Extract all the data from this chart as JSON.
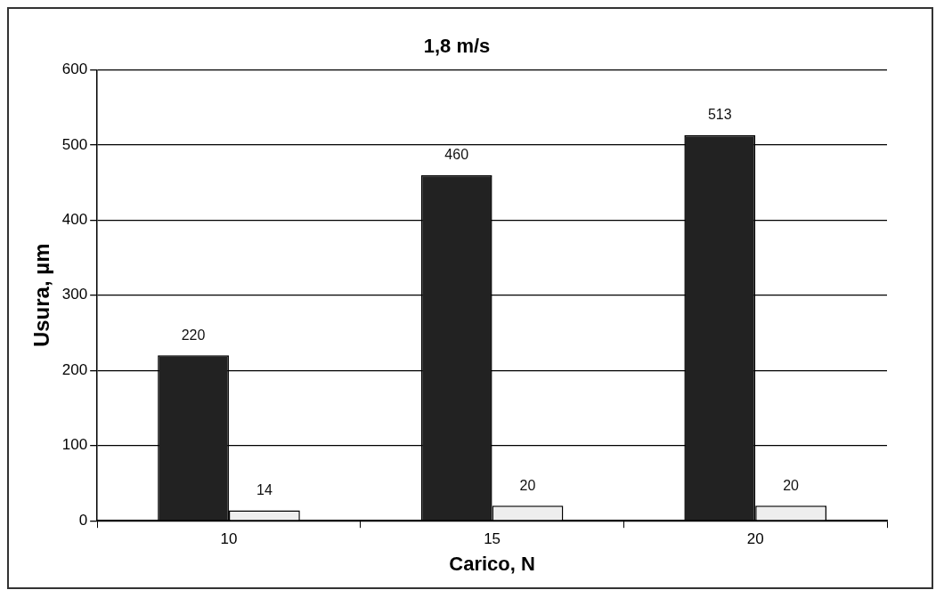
{
  "chart_data": {
    "type": "bar",
    "title": "1,8 m/s",
    "xlabel": "Carico, N",
    "ylabel": "Usura, µm",
    "categories": [
      "10",
      "15",
      "20"
    ],
    "series": [
      {
        "color": "#222222",
        "values": [
          220,
          460,
          513
        ]
      },
      {
        "color": "#eeeeee",
        "values": [
          14,
          20,
          20
        ]
      }
    ],
    "ylim": [
      0,
      600
    ],
    "yticks": [
      0,
      100,
      200,
      300,
      400,
      500,
      600
    ],
    "grid": "y",
    "legend": false,
    "data_labels": true
  }
}
